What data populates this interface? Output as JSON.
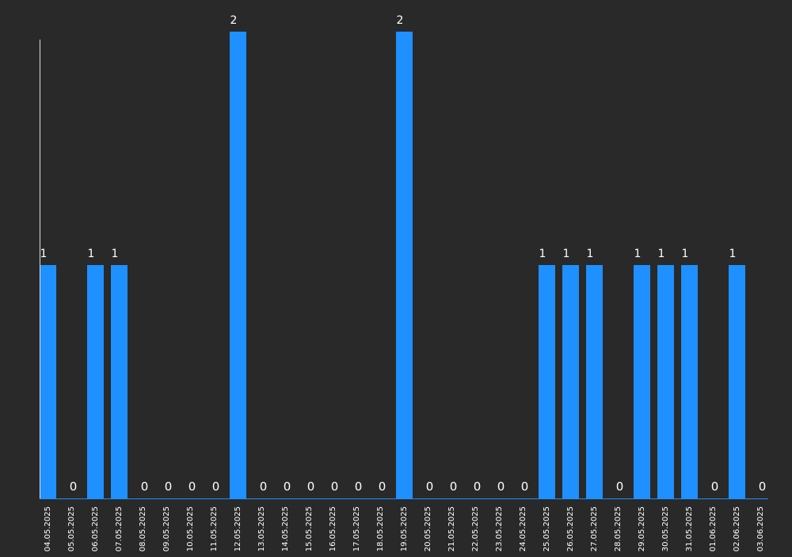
{
  "chart_data": {
    "type": "bar",
    "categories": [
      "04.05.2025",
      "05.05.2025",
      "06.05.2025",
      "07.05.2025",
      "08.05.2025",
      "09.05.2025",
      "10.05.2025",
      "11.05.2025",
      "12.05.2025",
      "13.05.2025",
      "14.05.2025",
      "15.05.2025",
      "16.05.2025",
      "17.05.2025",
      "18.05.2025",
      "19.05.2025",
      "20.05.2025",
      "21.05.2025",
      "22.05.2025",
      "23.05.2025",
      "24.05.2025",
      "25.05.2025",
      "26.05.2025",
      "27.05.2025",
      "28.05.2025",
      "29.05.2025",
      "30.05.2025",
      "31.05.2025",
      "01.06.2025",
      "02.06.2025",
      "03.06.2025"
    ],
    "values": [
      1,
      0,
      1,
      1,
      0,
      0,
      0,
      0,
      2,
      0,
      0,
      0,
      0,
      0,
      0,
      2,
      0,
      0,
      0,
      0,
      0,
      1,
      1,
      1,
      0,
      1,
      1,
      1,
      0,
      1,
      0
    ],
    "title": "",
    "xlabel": "",
    "ylabel": "",
    "ylim": [
      0,
      2
    ],
    "grid": false,
    "legend": "none",
    "bar_color": "#1e90ff",
    "background_color": "#292929",
    "text_color": "#ffffff"
  }
}
